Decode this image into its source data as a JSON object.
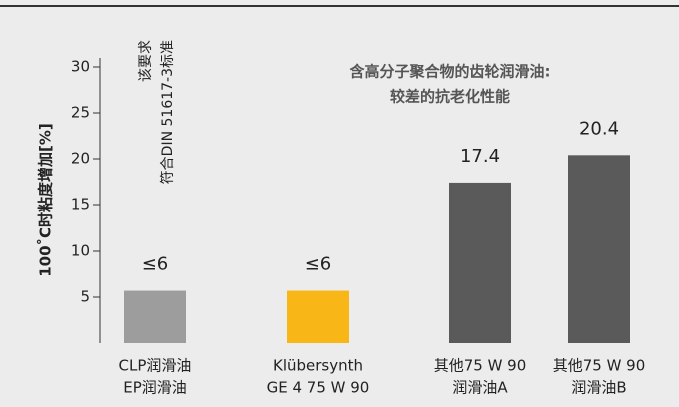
{
  "chart_data": {
    "type": "bar",
    "y_label": "100˚C时粘度增加[%]",
    "annotations": [
      "含高分子聚合物的齿轮润滑油:",
      "较差的抗老化性能"
    ],
    "note": [
      "该要求",
      "符合DIN 51617-3标准"
    ],
    "categories": [
      [
        "CLP润滑油",
        "EP润滑油"
      ],
      [
        "Klübersynth",
        "GE 4 75 W 90"
      ],
      [
        "其他75 W 90",
        "润滑油A"
      ],
      [
        "其他75 W 90",
        "润滑油B"
      ]
    ],
    "values": [
      5.7,
      5.7,
      17.4,
      20.4
    ],
    "value_labels": [
      "≤6",
      "≤6",
      "17.4",
      "20.4"
    ],
    "colors": [
      "#9d9d9d",
      "#f9b617",
      "#5a5a5a",
      "#5a5a5a"
    ],
    "ylim": [
      0,
      30
    ],
    "yticks": [
      5,
      10,
      15,
      20,
      25,
      30
    ]
  }
}
